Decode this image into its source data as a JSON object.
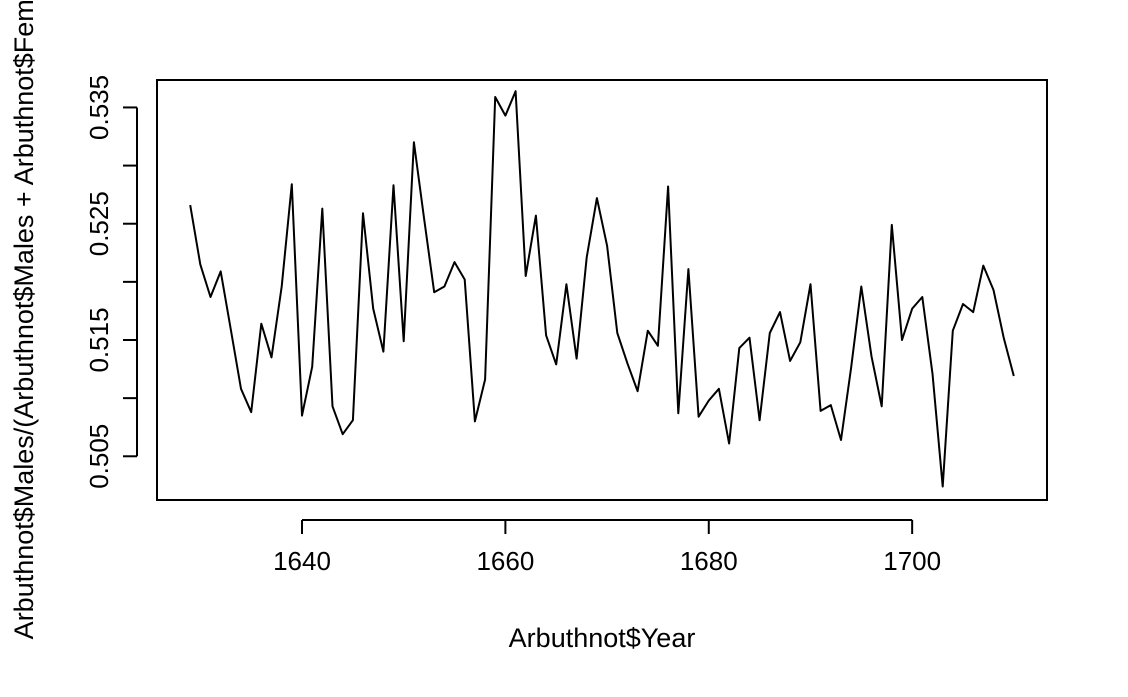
{
  "chart_data": {
    "type": "line",
    "title": "",
    "xlabel": "Arbuthnot$Year",
    "ylabel": "Arbuthnot$Males/(Arbuthnot$Males + Arbuthnot$Females)",
    "xlim": [
      1625.74,
      1713.26
    ],
    "ylim": [
      0.50124,
      0.53736
    ],
    "x_ticks": [
      1640,
      1660,
      1680,
      1700
    ],
    "y_ticks": [
      0.505,
      0.51,
      0.515,
      0.52,
      0.525,
      0.53,
      0.535
    ],
    "y_tick_labels": [
      "0.505",
      "",
      "0.515",
      "",
      "0.525",
      "",
      "0.535"
    ],
    "grid": false,
    "legend": "none",
    "line_color": "#000000",
    "x": [
      1629,
      1630,
      1631,
      1632,
      1633,
      1634,
      1635,
      1636,
      1637,
      1638,
      1639,
      1640,
      1641,
      1642,
      1643,
      1644,
      1645,
      1646,
      1647,
      1648,
      1649,
      1650,
      1651,
      1652,
      1653,
      1654,
      1655,
      1656,
      1657,
      1658,
      1659,
      1660,
      1661,
      1662,
      1663,
      1664,
      1665,
      1666,
      1667,
      1668,
      1669,
      1670,
      1671,
      1672,
      1673,
      1674,
      1675,
      1676,
      1677,
      1678,
      1679,
      1680,
      1681,
      1682,
      1683,
      1684,
      1685,
      1686,
      1687,
      1688,
      1689,
      1690,
      1691,
      1692,
      1693,
      1694,
      1695,
      1696,
      1697,
      1698,
      1699,
      1700,
      1701,
      1702,
      1703,
      1704,
      1705,
      1706,
      1707,
      1708,
      1709,
      1710
    ],
    "values": [
      0.5266,
      0.5215,
      0.5187,
      0.5209,
      0.5159,
      0.5108,
      0.5088,
      0.5164,
      0.5135,
      0.5196,
      0.5284,
      0.5085,
      0.5127,
      0.5263,
      0.5093,
      0.5069,
      0.5081,
      0.5259,
      0.5177,
      0.514,
      0.5283,
      0.5149,
      0.532,
      0.5255,
      0.5191,
      0.5196,
      0.5217,
      0.5202,
      0.508,
      0.5116,
      0.5359,
      0.5343,
      0.5364,
      0.5205,
      0.5257,
      0.5154,
      0.5129,
      0.5198,
      0.5134,
      0.5221,
      0.5272,
      0.5231,
      0.5156,
      0.513,
      0.5106,
      0.5158,
      0.5145,
      0.5282,
      0.5087,
      0.5211,
      0.5084,
      0.5098,
      0.5108,
      0.5061,
      0.5143,
      0.5152,
      0.5081,
      0.5156,
      0.5174,
      0.5132,
      0.5148,
      0.5198,
      0.5089,
      0.5094,
      0.5064,
      0.5126,
      0.5196,
      0.5136,
      0.5093,
      0.5249,
      0.515,
      0.5177,
      0.5187,
      0.5121,
      0.5024,
      0.5158,
      0.5181,
      0.5174,
      0.5214,
      0.5193,
      0.5152,
      0.5119
    ]
  }
}
